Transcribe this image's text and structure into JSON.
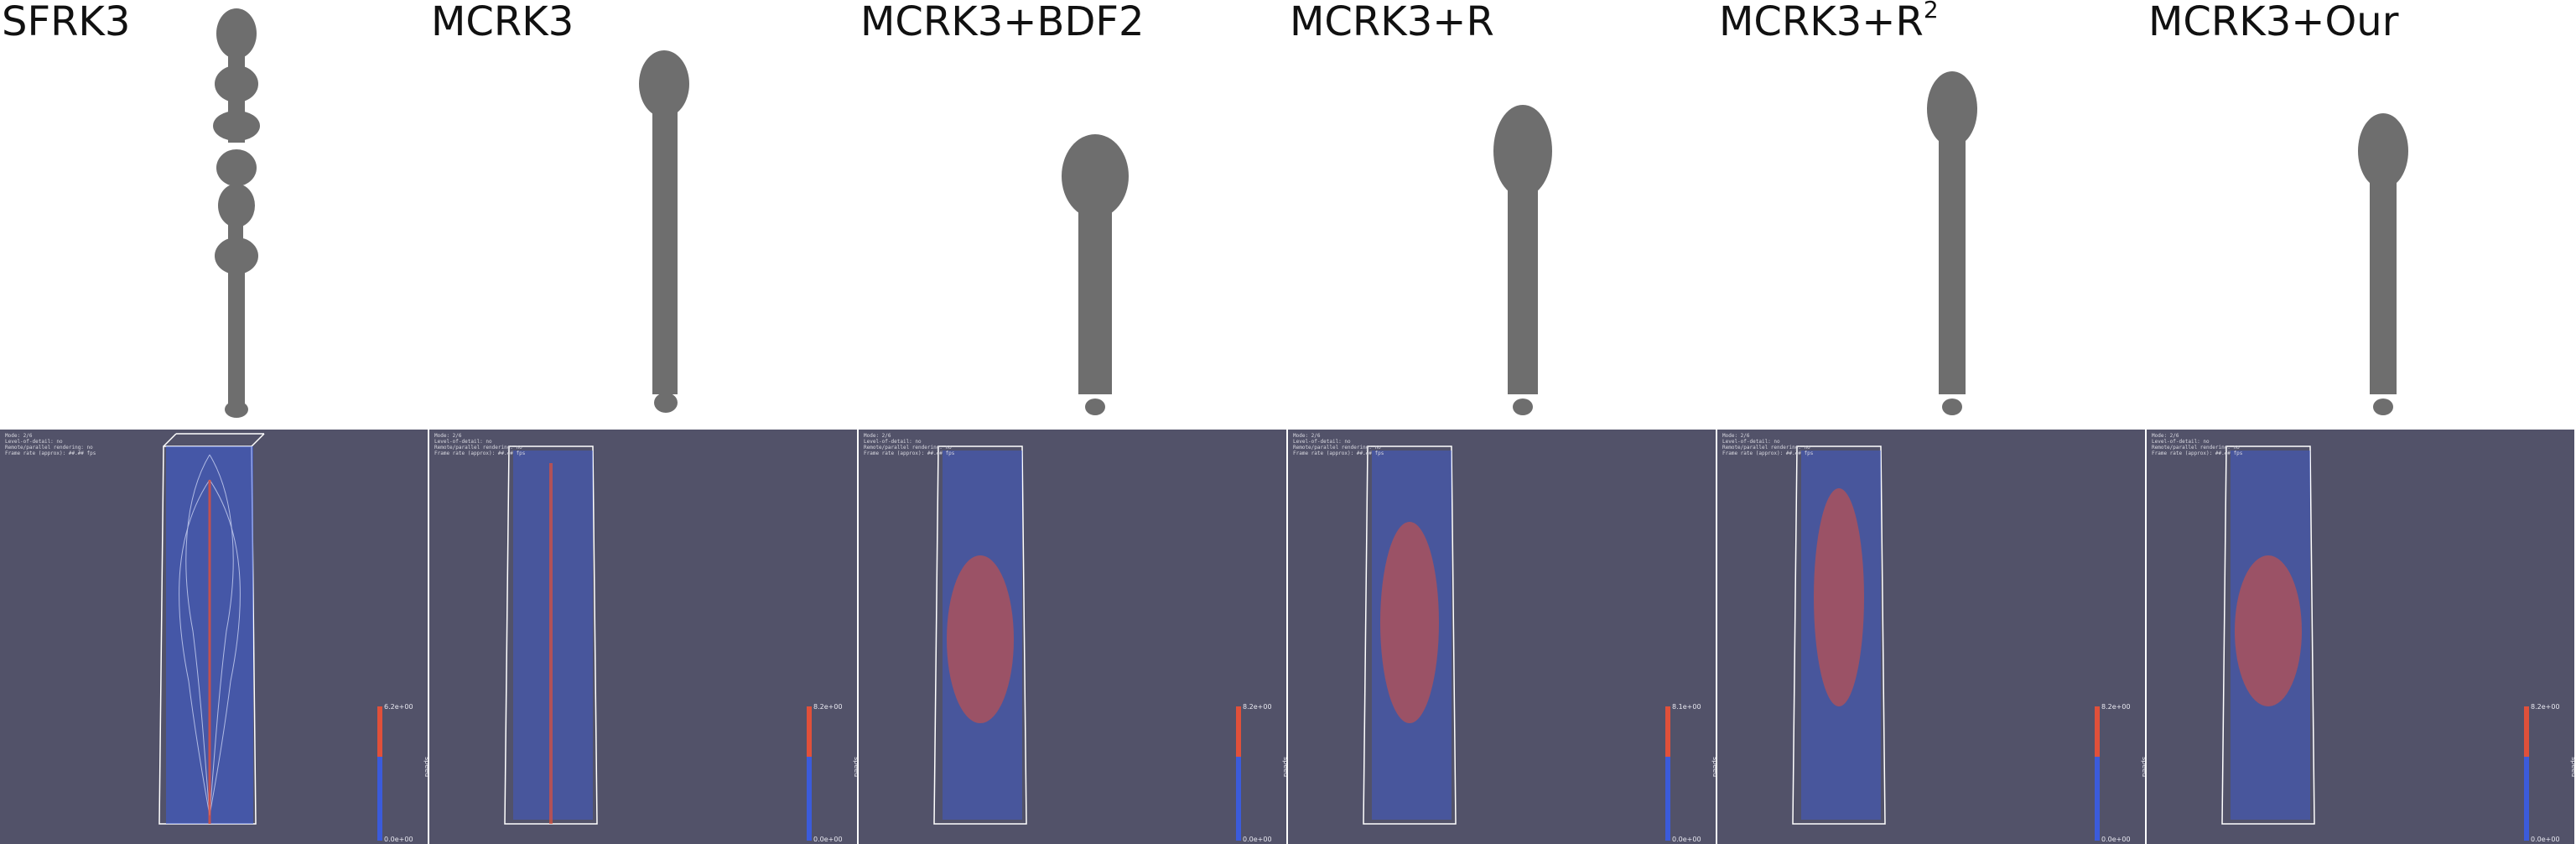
{
  "columns": [
    {
      "title": "SFRK3",
      "sup": "",
      "hud": [
        "Mode: 2/6",
        "Level-of-detail: no",
        "Remote/parallel rendering: no",
        "Frame rate (approx): ##.## fps"
      ],
      "cbar_max": "6.2e+00",
      "cbar_min": "0.0e+00",
      "cbar_title": "speed"
    },
    {
      "title": "MCRK3",
      "sup": "",
      "hud": [
        "Mode: 2/6",
        "Level-of-detail: no",
        "Remote/parallel rendering: no",
        "Frame rate (approx): ##.## fps"
      ],
      "cbar_max": "8.2e+00",
      "cbar_min": "0.0e+00",
      "cbar_title": "speed"
    },
    {
      "title": "MCRK3+BDF2",
      "sup": "",
      "hud": [
        "Mode: 2/6",
        "Level-of-detail: no",
        "Remote/parallel rendering: no",
        "Frame rate (approx): ##.## fps"
      ],
      "cbar_max": "8.2e+00",
      "cbar_min": "0.0e+00",
      "cbar_title": "speed"
    },
    {
      "title": "MCRK3+R",
      "sup": "",
      "hud": [
        "Mode: 2/6",
        "Level-of-detail: no",
        "Remote/parallel rendering: no",
        "Frame rate (approx): ##.## fps"
      ],
      "cbar_max": "8.1e+00",
      "cbar_min": "0.0e+00",
      "cbar_title": "speed"
    },
    {
      "title": "MCRK3+R",
      "sup": "2",
      "hud": [
        "Mode: 2/6",
        "Level-of-detail: no",
        "Remote/parallel rendering: no",
        "Frame rate (approx): ##.## fps"
      ],
      "cbar_max": "8.2e+00",
      "cbar_min": "0.0e+00",
      "cbar_title": "speed"
    },
    {
      "title": "MCRK3+Our",
      "sup": "",
      "hud": [
        "Mode: 2/6",
        "Level-of-detail: no",
        "Remote/parallel rendering: no",
        "Frame rate (approx): ##.## fps"
      ],
      "cbar_max": "8.2e+00",
      "cbar_min": "0.0e+00",
      "cbar_title": "speed"
    }
  ],
  "colors": {
    "panel_bg": "#525269",
    "smoke": "#6e6e6e",
    "cold": "#3b5bdb",
    "hot": "#e0503a"
  }
}
